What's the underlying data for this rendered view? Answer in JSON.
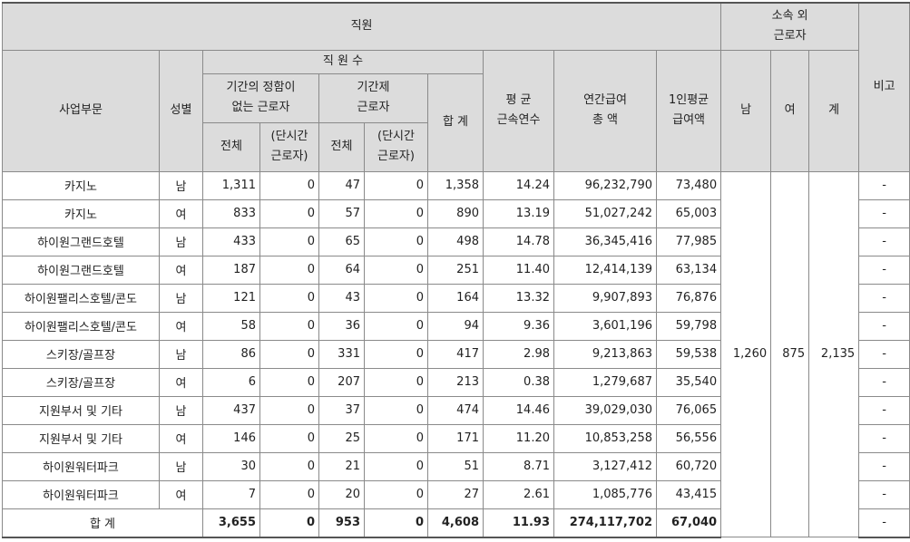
{
  "header": {
    "employees": "직원",
    "outside": "소속 외\n근로자",
    "remarks": "비고",
    "division": "사업부문",
    "gender": "성별",
    "employee_count": "직 원 수",
    "indefinite": "기간의 정함이\n없는 근로자",
    "fixed_term": "기간제\n근로자",
    "total": "합 계",
    "avg_tenure": "평 균\n근속연수",
    "annual_pay": "연간급여\n총 액",
    "per_capita_pay": "1인평균\n급여액",
    "male": "남",
    "female": "여",
    "sum": "계",
    "all": "전체",
    "part_time": "(단시간\n근로자)"
  },
  "rows": [
    {
      "division": "카지노",
      "gender": "남",
      "indef_total": "1,311",
      "indef_part": "0",
      "fixed_total": "47",
      "fixed_part": "0",
      "total": "1,358",
      "tenure": "14.24",
      "annual_pay": "96,232,790",
      "avg_pay": "73,480",
      "remark": "-"
    },
    {
      "division": "카지노",
      "gender": "여",
      "indef_total": "833",
      "indef_part": "0",
      "fixed_total": "57",
      "fixed_part": "0",
      "total": "890",
      "tenure": "13.19",
      "annual_pay": "51,027,242",
      "avg_pay": "65,003",
      "remark": "-"
    },
    {
      "division": "하이원그랜드호텔",
      "gender": "남",
      "indef_total": "433",
      "indef_part": "0",
      "fixed_total": "65",
      "fixed_part": "0",
      "total": "498",
      "tenure": "14.78",
      "annual_pay": "36,345,416",
      "avg_pay": "77,985",
      "remark": "-"
    },
    {
      "division": "하이원그랜드호텔",
      "gender": "여",
      "indef_total": "187",
      "indef_part": "0",
      "fixed_total": "64",
      "fixed_part": "0",
      "total": "251",
      "tenure": "11.40",
      "annual_pay": "12,414,139",
      "avg_pay": "63,134",
      "remark": "-"
    },
    {
      "division": "하이원팰리스호텔/콘도",
      "gender": "남",
      "indef_total": "121",
      "indef_part": "0",
      "fixed_total": "43",
      "fixed_part": "0",
      "total": "164",
      "tenure": "13.32",
      "annual_pay": "9,907,893",
      "avg_pay": "76,876",
      "remark": "-"
    },
    {
      "division": "하이원팰리스호텔/콘도",
      "gender": "여",
      "indef_total": "58",
      "indef_part": "0",
      "fixed_total": "36",
      "fixed_part": "0",
      "total": "94",
      "tenure": "9.36",
      "annual_pay": "3,601,196",
      "avg_pay": "59,798",
      "remark": "-"
    },
    {
      "division": "스키장/골프장",
      "gender": "남",
      "indef_total": "86",
      "indef_part": "0",
      "fixed_total": "331",
      "fixed_part": "0",
      "total": "417",
      "tenure": "2.98",
      "annual_pay": "9,213,863",
      "avg_pay": "59,538",
      "remark": "-"
    },
    {
      "division": "스키장/골프장",
      "gender": "여",
      "indef_total": "6",
      "indef_part": "0",
      "fixed_total": "207",
      "fixed_part": "0",
      "total": "213",
      "tenure": "0.38",
      "annual_pay": "1,279,687",
      "avg_pay": "35,540",
      "remark": "-"
    },
    {
      "division": "지원부서 및 기타",
      "gender": "남",
      "indef_total": "437",
      "indef_part": "0",
      "fixed_total": "37",
      "fixed_part": "0",
      "total": "474",
      "tenure": "14.46",
      "annual_pay": "39,029,030",
      "avg_pay": "76,065",
      "remark": "-"
    },
    {
      "division": "지원부서 및 기타",
      "gender": "여",
      "indef_total": "146",
      "indef_part": "0",
      "fixed_total": "25",
      "fixed_part": "0",
      "total": "171",
      "tenure": "11.20",
      "annual_pay": "10,853,258",
      "avg_pay": "56,556",
      "remark": "-"
    },
    {
      "division": "하이원워터파크",
      "gender": "남",
      "indef_total": "30",
      "indef_part": "0",
      "fixed_total": "21",
      "fixed_part": "0",
      "total": "51",
      "tenure": "8.71",
      "annual_pay": "3,127,412",
      "avg_pay": "60,720",
      "remark": "-"
    },
    {
      "division": "하이원워터파크",
      "gender": "여",
      "indef_total": "7",
      "indef_part": "0",
      "fixed_total": "20",
      "fixed_part": "0",
      "total": "27",
      "tenure": "2.61",
      "annual_pay": "1,085,776",
      "avg_pay": "43,415",
      "remark": "-"
    }
  ],
  "outside_workers": {
    "male": "1,260",
    "female": "875",
    "total": "2,135"
  },
  "totals": {
    "label": "합 계",
    "indef_total": "3,655",
    "indef_part": "0",
    "fixed_total": "953",
    "fixed_part": "0",
    "total": "4,608",
    "tenure": "11.93",
    "annual_pay": "274,117,702",
    "avg_pay": "67,040",
    "remark": "-"
  }
}
